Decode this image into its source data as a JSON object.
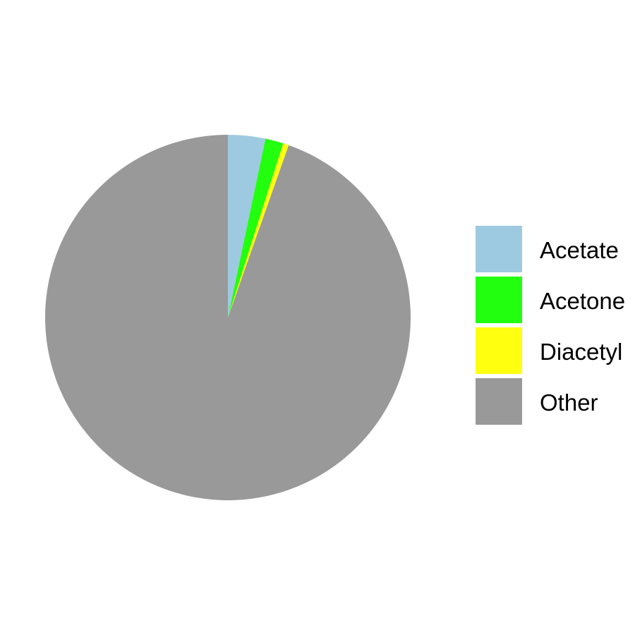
{
  "chart_data": {
    "type": "pie",
    "title": "",
    "start_angle_deg": 0,
    "direction": "clockwise",
    "legend_position": "right",
    "slices": [
      {
        "label": "Acetate",
        "value": 3.3,
        "color": "#9ECAE1"
      },
      {
        "label": "Acetone",
        "value": 1.6,
        "color": "#22FF0F"
      },
      {
        "label": "Diacetyl",
        "value": 0.5,
        "color": "#FFFF10"
      },
      {
        "label": "Other",
        "value": 94.6,
        "color": "#999999"
      }
    ]
  }
}
